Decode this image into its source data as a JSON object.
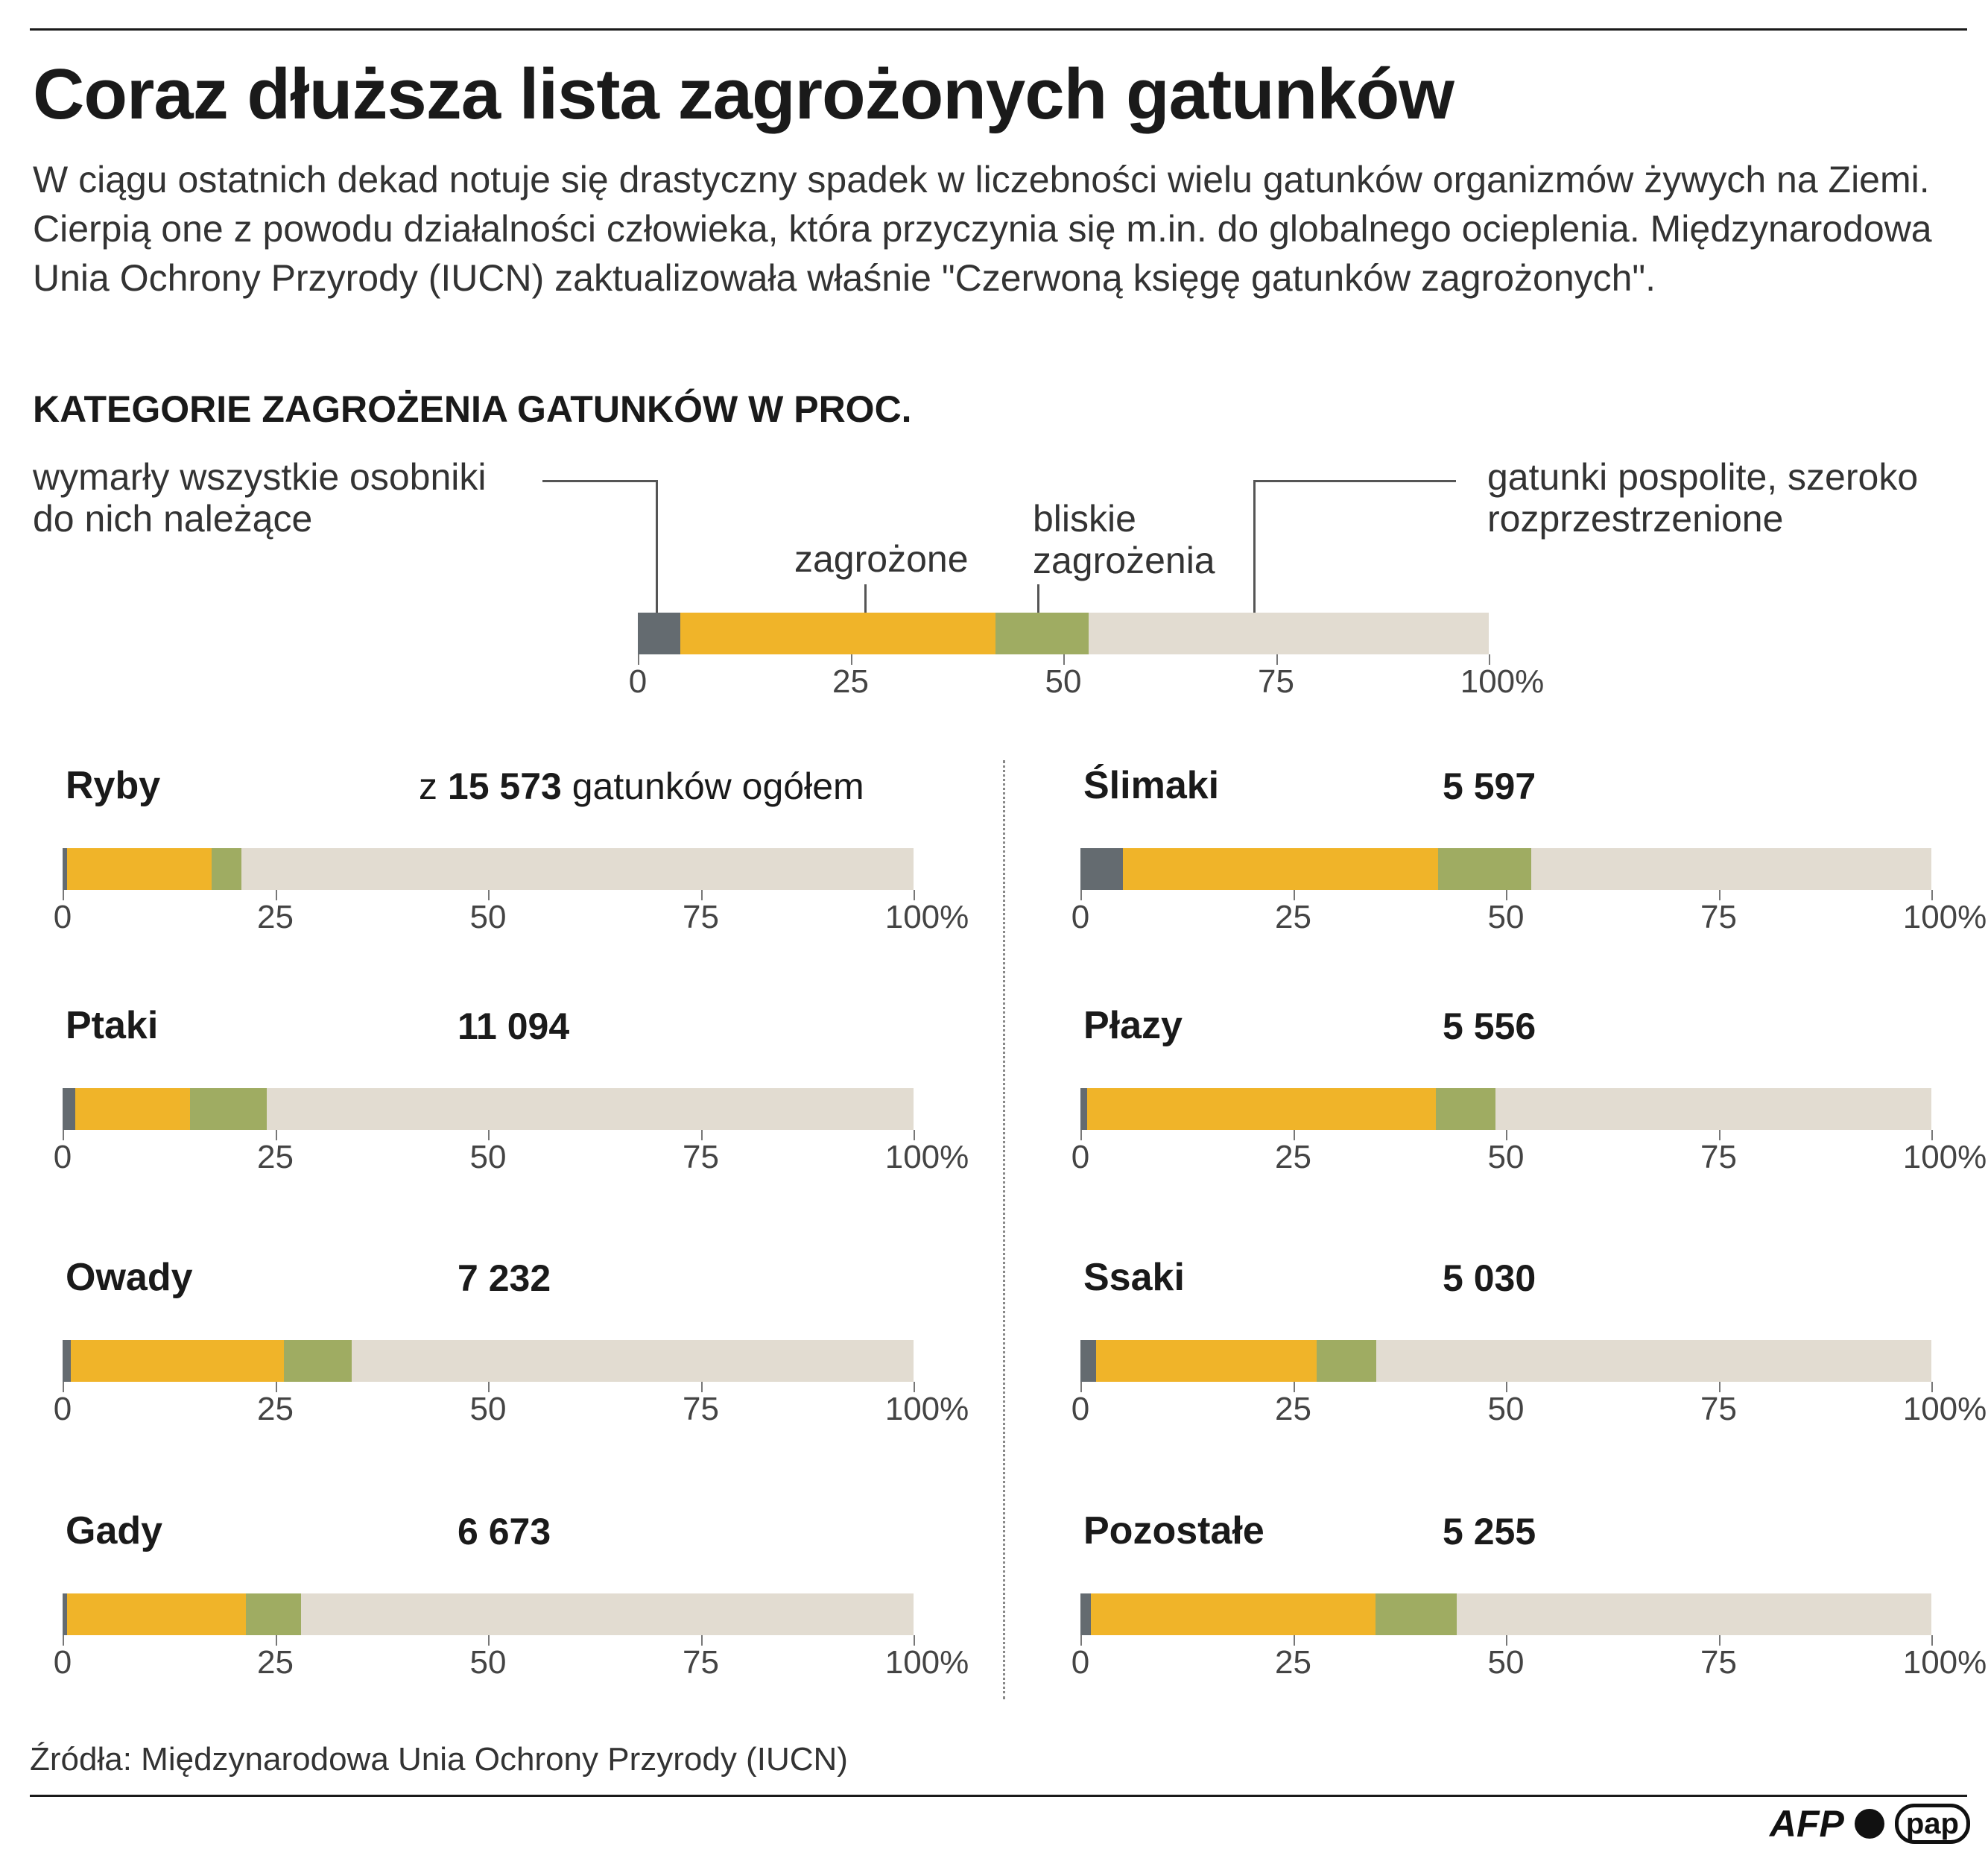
{
  "title": "Coraz dłuższa lista zagrożonych gatunków",
  "subtitle": "W ciągu ostatnich dekad notuje się drastyczny spadek w liczebności wielu gatunków organizmów żywych na Ziemi. Cierpią one z powodu działalności człowieka, która przyczynia się m.in. do globalnego ocieplenia. Międzynarodowa Unia Ochrony Przyrody (IUCN) zaktualizowała właśnie \"Czerwoną księgę gatunków zagrożonych\".",
  "section_title": "KATEGORIE ZAGROŻENIA GATUNKÓW W PROC.",
  "legend": {
    "extinct_line1": "wymarły wszystkie osobniki",
    "extinct_line2": "do nich należące",
    "endangered": "zagrożone",
    "near_line1": "bliskie",
    "near_line2": "zagrożenia",
    "common_line1": "gatunki pospolite, szeroko",
    "common_line2": "rozprzestrzenione"
  },
  "colors": {
    "extinct": "#646b70",
    "endangered": "#f0b429",
    "near_threatened": "#9fac62",
    "common": "#e2dcd1"
  },
  "source": "Źródła: Międzynarodowa Unia Ochrony Przyrody (IUCN)",
  "logos": {
    "afp": "AFP",
    "pap": "pap"
  },
  "chart_data": [
    {
      "type": "bar",
      "name": "legend",
      "stacked": true,
      "series_names": [
        "wymarły",
        "zagrożone",
        "bliskie zagrożenia",
        "gatunki pospolite"
      ],
      "values": [
        5,
        37,
        11,
        47
      ],
      "xlim": [
        0,
        100
      ],
      "ticks": [
        "0",
        "25",
        "50",
        "75",
        "100%"
      ]
    },
    {
      "type": "bar",
      "name": "Ryby",
      "count_prefix": "z ",
      "count": "15 573",
      "count_suffix": " gatunków ogółem",
      "stacked": true,
      "values": [
        0.5,
        17,
        3.5,
        79
      ],
      "xlim": [
        0,
        100
      ],
      "ticks": [
        "0",
        "25",
        "50",
        "75",
        "100%"
      ]
    },
    {
      "type": "bar",
      "name": "Ptaki",
      "count": "11 094",
      "stacked": true,
      "values": [
        1.5,
        13.5,
        9,
        76
      ],
      "xlim": [
        0,
        100
      ],
      "ticks": [
        "0",
        "25",
        "50",
        "75",
        "100%"
      ]
    },
    {
      "type": "bar",
      "name": "Owady",
      "count": "7 232",
      "stacked": true,
      "values": [
        1,
        25,
        8,
        66
      ],
      "xlim": [
        0,
        100
      ],
      "ticks": [
        "0",
        "25",
        "50",
        "75",
        "100%"
      ]
    },
    {
      "type": "bar",
      "name": "Gady",
      "count": "6 673",
      "stacked": true,
      "values": [
        0.5,
        21,
        6.5,
        72
      ],
      "xlim": [
        0,
        100
      ],
      "ticks": [
        "0",
        "25",
        "50",
        "75",
        "100%"
      ]
    },
    {
      "type": "bar",
      "name": "Ślimaki",
      "count": "5 597",
      "stacked": true,
      "values": [
        5,
        37,
        11,
        47
      ],
      "xlim": [
        0,
        100
      ],
      "ticks": [
        "0",
        "25",
        "50",
        "75",
        "100%"
      ]
    },
    {
      "type": "bar",
      "name": "Płazy",
      "count": "5 556",
      "stacked": true,
      "values": [
        0.8,
        41,
        7,
        51.2
      ],
      "xlim": [
        0,
        100
      ],
      "ticks": [
        "0",
        "25",
        "50",
        "75",
        "100%"
      ]
    },
    {
      "type": "bar",
      "name": "Ssaki",
      "count": "5 030",
      "stacked": true,
      "values": [
        1.8,
        26,
        7,
        65.2
      ],
      "xlim": [
        0,
        100
      ],
      "ticks": [
        "0",
        "25",
        "50",
        "75",
        "100%"
      ]
    },
    {
      "type": "bar",
      "name": "Pozostałe",
      "count": "5 255",
      "stacked": true,
      "values": [
        1.2,
        33.5,
        9.5,
        55.8
      ],
      "xlim": [
        0,
        100
      ],
      "ticks": [
        "0",
        "25",
        "50",
        "75",
        "100%"
      ]
    }
  ]
}
